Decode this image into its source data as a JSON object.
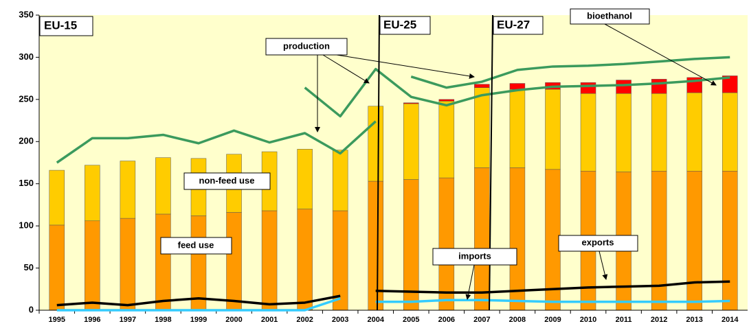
{
  "chart_data": {
    "type": "bar",
    "categories": [
      "1995",
      "1996",
      "1997",
      "1998",
      "1999",
      "2000",
      "2001",
      "2002",
      "2003",
      "2004",
      "2005",
      "2006",
      "2007",
      "2008",
      "2009",
      "2010",
      "2011",
      "2012",
      "2013",
      "2014"
    ],
    "ylim": [
      0,
      350
    ],
    "yticks": [
      0,
      50,
      100,
      150,
      200,
      250,
      300,
      350
    ],
    "grid": false,
    "background": "#ffffcc",
    "series": [
      {
        "type": "bar",
        "color": "#ff9900",
        "values": [
          101,
          106,
          109,
          114,
          112,
          116,
          118,
          120,
          118,
          153,
          155,
          157,
          169,
          169,
          167,
          165,
          164,
          165,
          165,
          165
        ]
      },
      {
        "type": "bar",
        "color": "#ffcc00",
        "values": [
          65,
          66,
          68,
          67,
          68,
          69,
          70,
          71,
          72,
          89,
          90,
          91,
          95,
          93,
          95,
          92,
          93,
          92,
          93,
          93
        ]
      },
      {
        "type": "bar",
        "color": "#ff0000",
        "values": [
          null,
          null,
          null,
          null,
          null,
          null,
          null,
          null,
          null,
          null,
          1,
          2,
          4,
          7,
          8,
          13,
          16,
          17,
          18,
          20
        ]
      },
      {
        "type": "line",
        "color": "#3b9a5d",
        "values": [
          175,
          204,
          204,
          208,
          198,
          213,
          199,
          210,
          186,
          224,
          null,
          null,
          null,
          null,
          null,
          null,
          null,
          null,
          null,
          null
        ]
      },
      {
        "type": "line",
        "color": "#3b9a5d",
        "values": [
          null,
          null,
          null,
          null,
          null,
          null,
          null,
          264,
          230,
          286,
          253,
          243,
          255,
          261,
          265,
          266,
          267,
          269,
          272,
          276
        ]
      },
      {
        "type": "line",
        "color": "#3b9a5d",
        "values": [
          null,
          null,
          null,
          null,
          null,
          null,
          null,
          null,
          null,
          null,
          277,
          264,
          271,
          285,
          289,
          290,
          292,
          295,
          298,
          300
        ]
      },
      {
        "type": "line",
        "color": "#000000",
        "values": [
          6,
          9,
          6,
          11,
          14,
          11,
          7,
          9,
          17,
          null,
          null,
          null,
          null,
          null,
          null,
          null,
          null,
          null,
          null,
          null
        ]
      },
      {
        "type": "line",
        "color": "#000000",
        "values": [
          null,
          null,
          null,
          null,
          null,
          null,
          null,
          null,
          null,
          23,
          22,
          21,
          21,
          23,
          25,
          27,
          28,
          29,
          33,
          34
        ]
      },
      {
        "type": "line",
        "color": "#33ccff",
        "values": [
          0,
          0,
          0,
          0,
          0,
          0,
          0,
          0,
          14,
          null,
          null,
          null,
          null,
          null,
          null,
          null,
          null,
          null,
          null,
          null
        ]
      },
      {
        "type": "line",
        "color": "#33ccff",
        "values": [
          null,
          null,
          null,
          null,
          null,
          null,
          null,
          null,
          null,
          10,
          10,
          12,
          12,
          11,
          10,
          10,
          10,
          10,
          10,
          11
        ]
      }
    ],
    "annotations": [
      "EU-15",
      "EU-25",
      "EU-27",
      "production",
      "bioethanol",
      "non-feed use",
      "feed use",
      "exports",
      "imports"
    ]
  }
}
